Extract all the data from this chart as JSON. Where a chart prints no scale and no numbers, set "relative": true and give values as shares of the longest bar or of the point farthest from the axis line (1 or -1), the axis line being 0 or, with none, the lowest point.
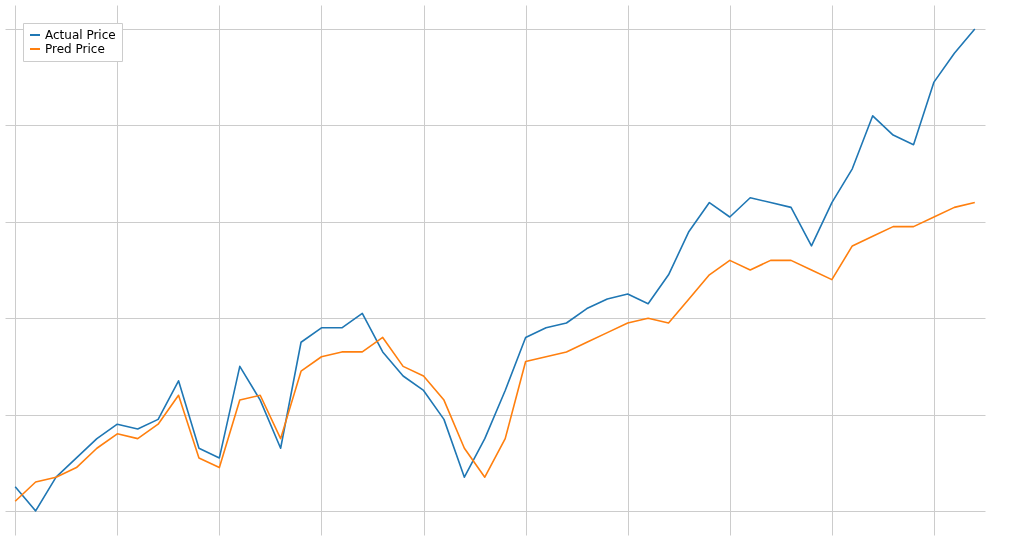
{
  "chart_data": {
    "type": "line",
    "relative": true,
    "grid": true,
    "legend": "top left",
    "categories": [
      null,
      null,
      null,
      null,
      null,
      null,
      null,
      null,
      null,
      null,
      null,
      null,
      null,
      null,
      null,
      null,
      null,
      null,
      null,
      null,
      null,
      null,
      null,
      null,
      null,
      null,
      null,
      null,
      null,
      null,
      null,
      null,
      null,
      null,
      null,
      null,
      null,
      null,
      null,
      null,
      null,
      null,
      null,
      null,
      null,
      null,
      null,
      null
    ],
    "series": [
      {
        "name": "Actual Price",
        "color": "#1f77b4",
        "values": [
          0.05,
          0.0,
          0.07,
          0.11,
          0.15,
          0.18,
          0.17,
          0.19,
          0.27,
          0.13,
          0.11,
          0.3,
          0.23,
          0.13,
          0.35,
          0.38,
          0.38,
          0.41,
          0.33,
          0.28,
          0.25,
          0.19,
          0.07,
          0.15,
          0.25,
          0.36,
          0.38,
          0.39,
          0.42,
          0.44,
          0.45,
          0.43,
          0.49,
          0.58,
          0.64,
          0.61,
          0.65,
          0.64,
          0.63,
          0.55,
          0.64,
          0.71,
          0.82,
          0.78,
          0.76,
          0.89,
          0.95,
          1.0
        ]
      },
      {
        "name": "Pred Price",
        "color": "#ff7f0e",
        "values": [
          0.02,
          0.06,
          0.07,
          0.09,
          0.13,
          0.16,
          0.15,
          0.18,
          0.24,
          0.11,
          0.09,
          0.23,
          0.24,
          0.15,
          0.29,
          0.32,
          0.33,
          0.33,
          0.36,
          0.3,
          0.28,
          0.23,
          0.13,
          0.07,
          0.15,
          0.31,
          0.32,
          0.33,
          0.35,
          0.37,
          0.39,
          0.4,
          0.39,
          0.44,
          0.49,
          0.52,
          0.5,
          0.52,
          0.52,
          0.5,
          0.48,
          0.55,
          0.57,
          0.59,
          0.59,
          0.61,
          0.63,
          0.64
        ]
      }
    ]
  }
}
